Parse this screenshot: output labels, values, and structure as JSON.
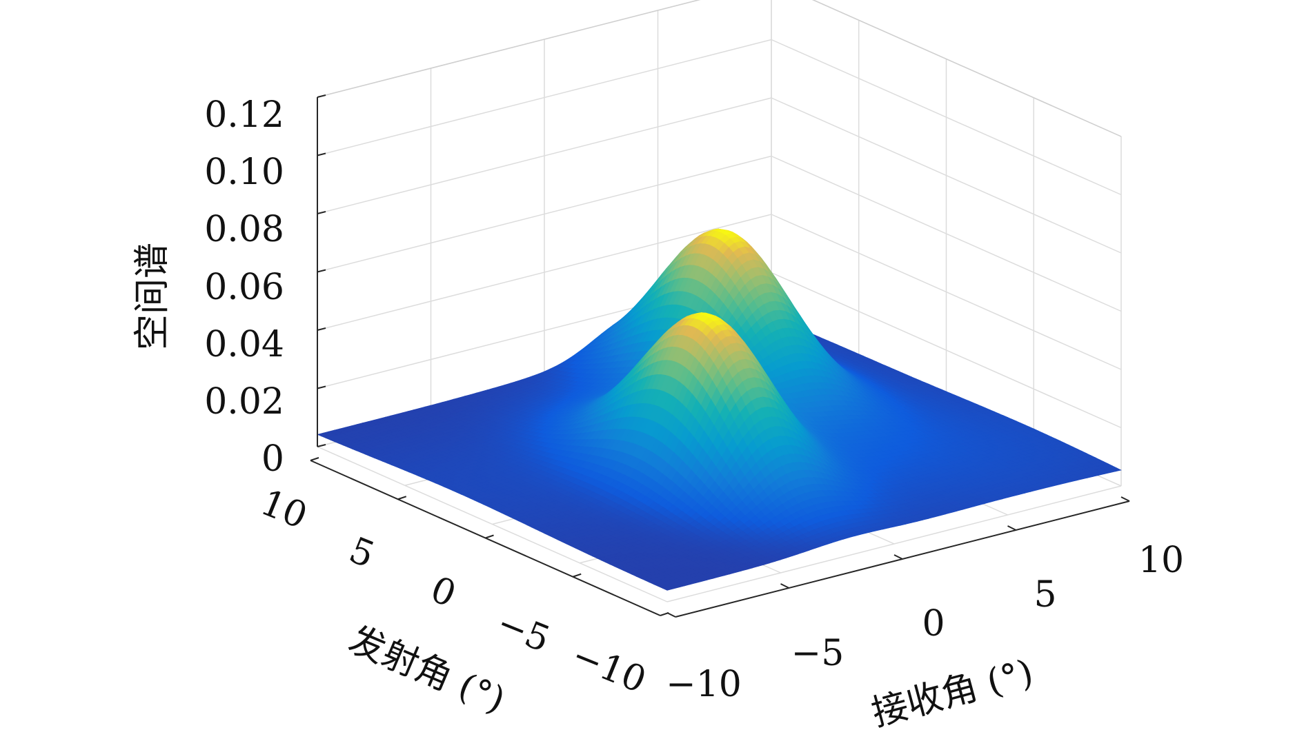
{
  "chart_data": {
    "type": "surface",
    "title": "",
    "xlabel": "接收角 (°)",
    "ylabel": "发射角 (°)",
    "zlabel": "空间谱",
    "xlim": [
      -10,
      10
    ],
    "ylim": [
      -10,
      10
    ],
    "zlim": [
      0,
      0.12
    ],
    "xticks": [
      "−10",
      "−5",
      "0",
      "5",
      "10"
    ],
    "xtick_values": [
      -10,
      -5,
      0,
      5,
      10
    ],
    "yticks": [
      "−10",
      "−5",
      "0",
      "5",
      "10"
    ],
    "ytick_values": [
      -10,
      -5,
      0,
      5,
      10
    ],
    "zticks": [
      "0",
      "0.02",
      "0.04",
      "0.06",
      "0.08",
      "0.10",
      "0.12"
    ],
    "ztick_values": [
      0,
      0.02,
      0.04,
      0.06,
      0.08,
      0.1,
      0.12
    ],
    "grid": true,
    "colormap": "parula",
    "peaks": [
      {
        "receive_angle": -2,
        "transmit_angle": -2,
        "value": 0.06
      },
      {
        "receive_angle": 4,
        "transmit_angle": 5,
        "value": 0.06
      }
    ],
    "background_level": 0.01
  }
}
